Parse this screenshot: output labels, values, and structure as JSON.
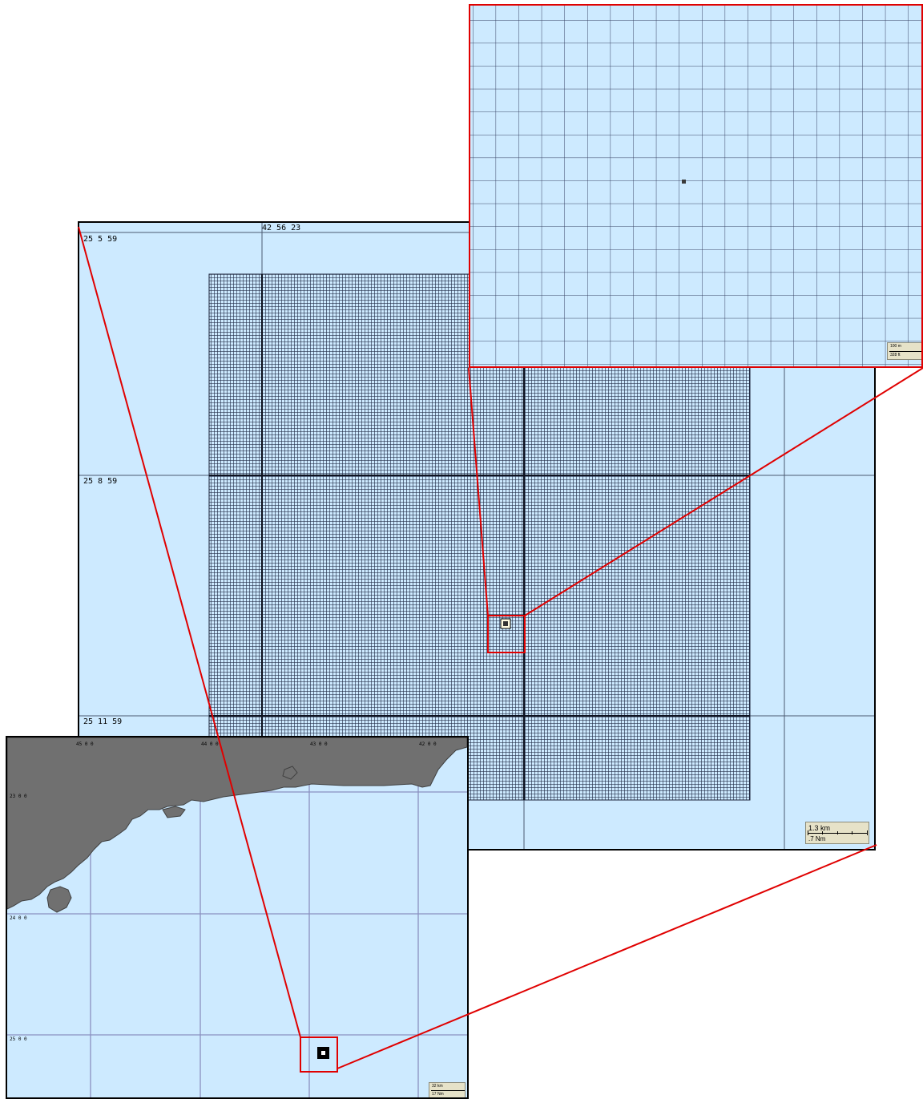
{
  "main_chart": {
    "labels": {
      "lat_top": "25  5  59",
      "lat_mid": "25  8  59",
      "lat_bottom": "25  11  59",
      "lon_center": "42  56  23"
    },
    "scale": {
      "km": "1.3 km",
      "nm": ".7 Nm"
    }
  },
  "zoom_chart": {
    "scale": {
      "top": "100 m",
      "bottom": "328 ft"
    }
  },
  "overview_chart": {
    "labels": {
      "lon_1": "45  0  0",
      "lon_2": "44  0  0",
      "lon_3": "43  0  0",
      "lon_4": "42  0  0",
      "lat_1": "23  0  0",
      "lat_2": "24  0  0",
      "lat_3": "25  0  0"
    },
    "scale": {
      "km": "32 km",
      "nm": "17 Nm"
    }
  },
  "colors": {
    "water": "#cdeaff",
    "land": "#707070",
    "grid_line": "#7a86a8",
    "highlight": "#e00000"
  }
}
